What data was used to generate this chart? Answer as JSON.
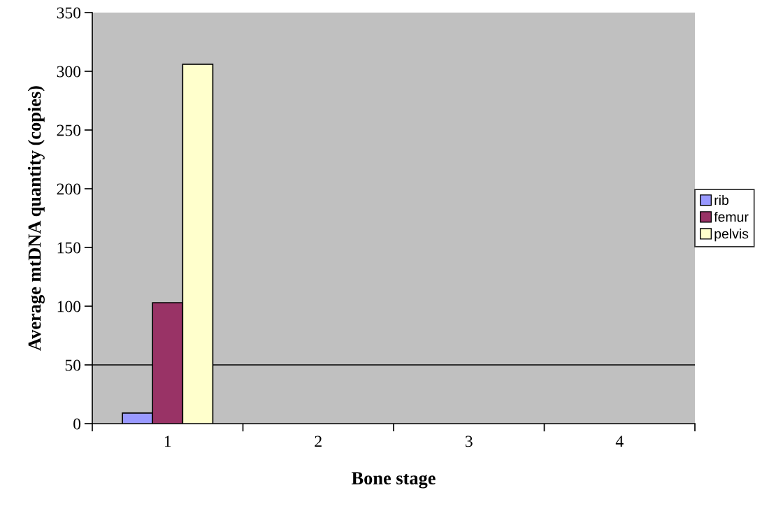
{
  "chart_data": {
    "type": "bar",
    "xlabel": "Bone stage",
    "ylabel": "Average mtDNA quantity (copies)",
    "categories": [
      "1",
      "2",
      "3",
      "4"
    ],
    "series": [
      {
        "name": "rib",
        "color": "#9999ff",
        "values": [
          9,
          null,
          null,
          null
        ]
      },
      {
        "name": "femur",
        "color": "#993366",
        "values": [
          103,
          null,
          null,
          null
        ]
      },
      {
        "name": "pelvis",
        "color": "#ffffcc",
        "values": [
          306,
          null,
          null,
          null
        ]
      }
    ],
    "ylim": [
      0,
      350
    ],
    "yticks": [
      0,
      50,
      100,
      150,
      200,
      250,
      300,
      350
    ],
    "ref_lines": [
      {
        "axis": "y",
        "value": 50,
        "label": null,
        "color": "#000000"
      }
    ],
    "legend": "right",
    "grid": false
  }
}
